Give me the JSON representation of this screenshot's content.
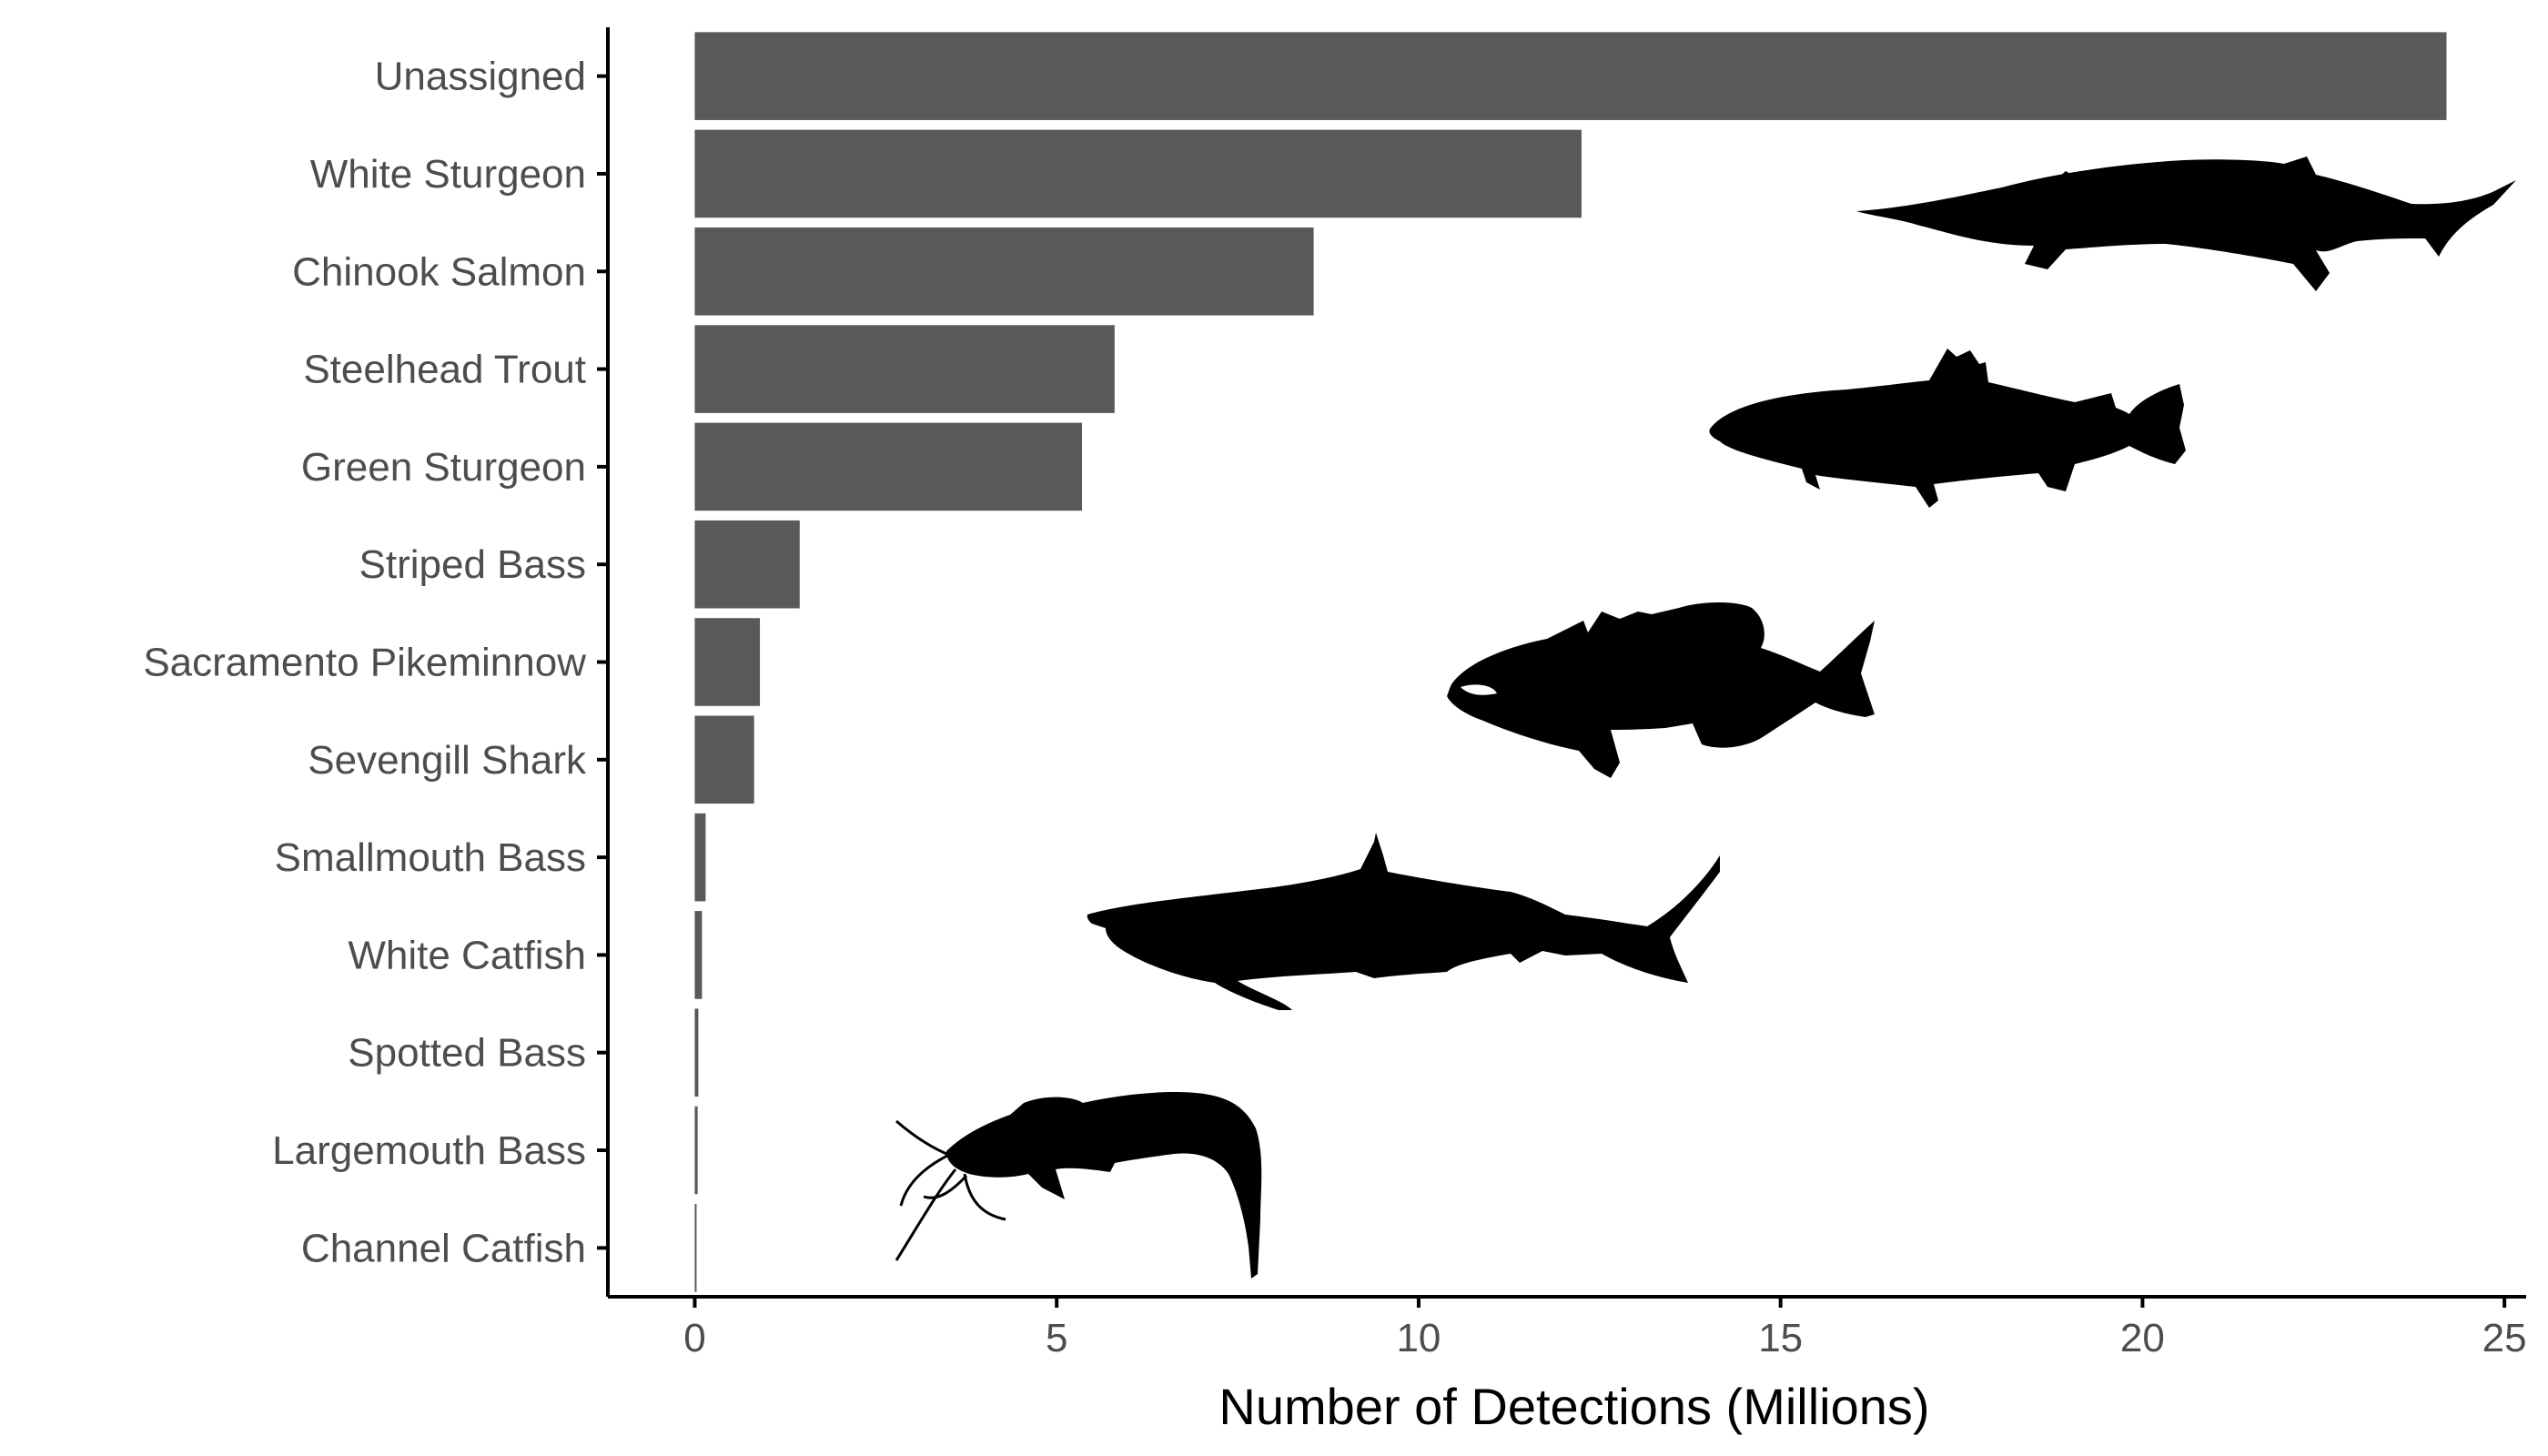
{
  "chart_data": {
    "type": "bar",
    "orientation": "horizontal",
    "title": "",
    "xlabel": "Number of Detections (Millions)",
    "ylabel": "",
    "xlim": [
      -1.2,
      25.3
    ],
    "x_ticks": [
      "0",
      "5",
      "10",
      "15",
      "20",
      "25"
    ],
    "x_tick_values": [
      0,
      5,
      10,
      15,
      20,
      25
    ],
    "grid": false,
    "legend": "none",
    "bar_color": "#595959",
    "categories": [
      "Unassigned",
      "White Sturgeon",
      "Chinook Salmon",
      "Steelhead Trout",
      "Green Sturgeon",
      "Striped Bass",
      "Sacramento Pikeminnow",
      "Sevengill Shark",
      "Smallmouth Bass",
      "White Catfish",
      "Spotted Bass",
      "Largemouth Bass",
      "Channel Catfish"
    ],
    "values": [
      24.2,
      12.25,
      8.55,
      5.8,
      5.35,
      1.45,
      0.9,
      0.82,
      0.15,
      0.1,
      0.05,
      0.04,
      0.0
    ],
    "decorations": [
      "sturgeon-silhouette",
      "trout-silhouette",
      "bass-silhouette",
      "shark-silhouette",
      "catfish-silhouette"
    ]
  }
}
